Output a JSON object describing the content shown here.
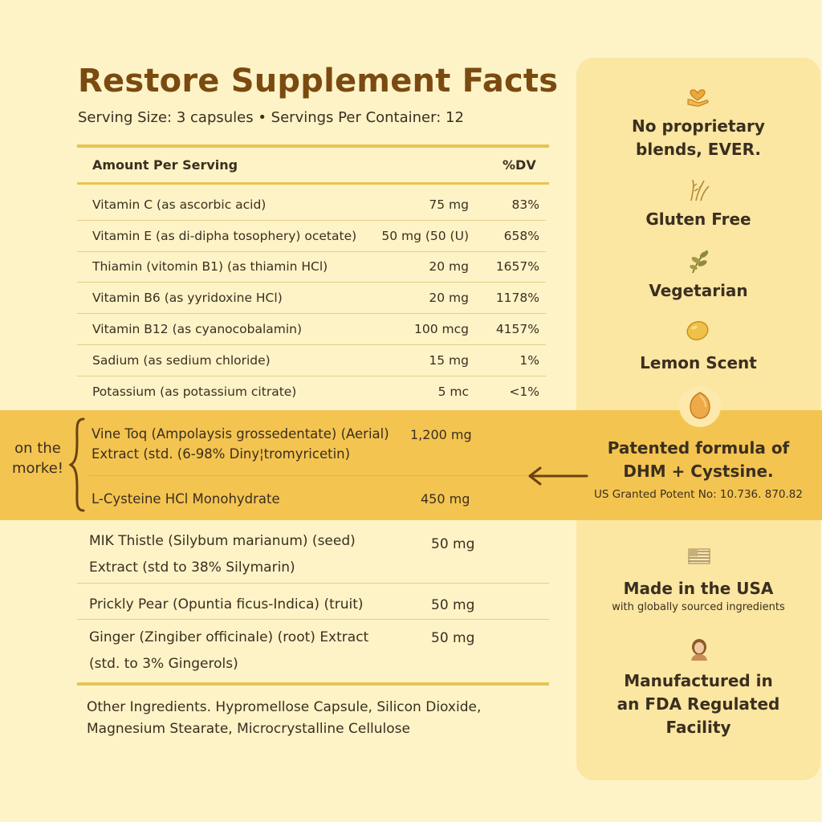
{
  "title": "Restore Supplement Facts",
  "serving": "Serving Size: 3 capsules • Servings Per Container: 12",
  "table_header": {
    "amount_label": "Amount Per Serving",
    "dv_label": "%DV"
  },
  "nutrients": [
    {
      "name": "Vitamin C (as ascorbic acid)",
      "amount": "75 mg",
      "dv": "83%"
    },
    {
      "name": "Vitamin E (as di-dipha tosophery) ocetate)",
      "amount": "50 mg (50 (U)",
      "dv": "658%"
    },
    {
      "name": "Thiamin (vitomin B1) (as thiamin HCl)",
      "amount": "20 mg",
      "dv": "1657%"
    },
    {
      "name": "Vitamin B6 (as yyridoxine HCl)",
      "amount": "20 mg",
      "dv": "1178%"
    },
    {
      "name": "Vitamin B12 (as cyanocobalamin)",
      "amount": "100 mcg",
      "dv": "4157%"
    },
    {
      "name": "Sadium (as sedium chloride)",
      "amount": "15 mg",
      "dv": "1%"
    },
    {
      "name": "Potassium (as potassium citrate)",
      "amount": "5 mc",
      "dv": "<1%"
    }
  ],
  "callout": {
    "line1": "on the",
    "line2": "morke!"
  },
  "highlighted": [
    {
      "line1": "Vine Toq (Ampolaysis grossedentate) (Aerial)",
      "line2": "Extract (std. (6-98% Diny¦tromyricetin)",
      "amount": "1,200 mg"
    },
    {
      "line1": "L-Cysteine HCl Monohydrate",
      "line2": "",
      "amount": "450 mg"
    }
  ],
  "herbs": [
    {
      "line1": "MIK Thistle (Silybum marianum) (seed)",
      "line2": "Extract (std to 38% Silymarin)",
      "amount": "50 mg"
    },
    {
      "line1": "Prickly Pear (Opuntia ficus-Indica) (truit)",
      "line2": "",
      "amount": "50 mg"
    },
    {
      "line1": "Ginger (Zingiber officinale) (root) Extract",
      "line2": "(std. to 3% Gingerols)",
      "amount": "50 mg"
    }
  ],
  "other_ingredients": {
    "line1": "Other Ingredients. Hypromellose Capsule, Silicon Dioxide,",
    "line2": "Magnesium Stearate, Microcrystalline Cellulose"
  },
  "features": {
    "blends": {
      "icon": "hand-heart-icon",
      "line1": "No proprietary",
      "line2": "blends, EVER."
    },
    "gluten": {
      "icon": "wheat-icon",
      "line1": "Gluten Free"
    },
    "vegetarian": {
      "icon": "leaf-icon",
      "line1": "Vegetarian"
    },
    "lemon": {
      "icon": "lemon-icon",
      "line1": "Lemon Scent"
    },
    "patent": {
      "icon": "capsule-icon",
      "line1": "Patented formula of",
      "line2": "DHM + Cystsine.",
      "sub": "US Granted Potent No: 10.736. 870.82"
    },
    "usa": {
      "icon": "flag-icon",
      "line1": "Made in the USA",
      "sub": "with globally sourced ingredients"
    },
    "fda": {
      "icon": "person-icon",
      "line1": "Manufactured in",
      "line2": "an FDA Regulated",
      "line3": "Facility"
    }
  },
  "colors": {
    "background": "#fdf3c7",
    "title": "#7a4a10",
    "band": "#f4c451",
    "panel": "#fbe6a2",
    "rule": "#e9c453"
  }
}
